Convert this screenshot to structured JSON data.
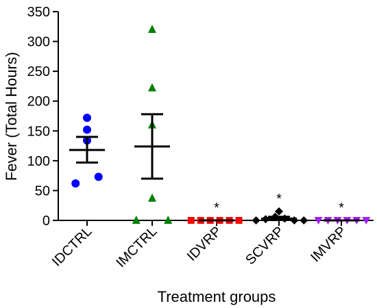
{
  "chart_data": {
    "type": "scatter",
    "title": "",
    "xlabel": "Treatment groups",
    "ylabel": "Fever (Total Hours)",
    "ylim": [
      0,
      350
    ],
    "yticks": [
      0,
      50,
      100,
      150,
      200,
      250,
      300,
      350
    ],
    "grid": false,
    "legend": "none",
    "categories": [
      "IDCTRL",
      "IMCTRL",
      "IDVRP",
      "SCVRP",
      "IMVRP"
    ],
    "series": [
      {
        "category": "IDCTRL",
        "marker": "circle",
        "color": "#0000ff",
        "points": [
          {
            "offset": -0.18,
            "y": 62
          },
          {
            "offset": 0.0,
            "y": 134
          },
          {
            "offset": 0.0,
            "y": 152
          },
          {
            "offset": 0.0,
            "y": 172
          },
          {
            "offset": 0.18,
            "y": 73
          }
        ],
        "mean": 118,
        "sem_low": 97,
        "sem_high": 140,
        "annotation": ""
      },
      {
        "category": "IMCTRL",
        "marker": "triangle-up",
        "color": "#008000",
        "points": [
          {
            "offset": -0.25,
            "y": 0
          },
          {
            "offset": 0.0,
            "y": 37
          },
          {
            "offset": 0.0,
            "y": 160
          },
          {
            "offset": 0.0,
            "y": 222
          },
          {
            "offset": 0.0,
            "y": 320
          },
          {
            "offset": 0.25,
            "y": 0
          }
        ],
        "mean": 124,
        "sem_low": 70,
        "sem_high": 178,
        "annotation": ""
      },
      {
        "category": "IDVRP",
        "marker": "square",
        "color": "#ff0000",
        "points": [
          {
            "offset": -0.4,
            "y": 0
          },
          {
            "offset": -0.25,
            "y": 0
          },
          {
            "offset": -0.1,
            "y": 0
          },
          {
            "offset": 0.05,
            "y": 0
          },
          {
            "offset": 0.2,
            "y": 0
          },
          {
            "offset": 0.35,
            "y": 0
          }
        ],
        "mean": 0,
        "sem_low": 0,
        "sem_high": 0,
        "annotation": "*"
      },
      {
        "category": "SCVRP",
        "marker": "diamond",
        "color": "#000000",
        "points": [
          {
            "offset": -0.36,
            "y": 0
          },
          {
            "offset": -0.21,
            "y": 2
          },
          {
            "offset": -0.06,
            "y": 6
          },
          {
            "offset": 0.0,
            "y": 15
          },
          {
            "offset": 0.09,
            "y": 3
          },
          {
            "offset": 0.24,
            "y": 0
          },
          {
            "offset": 0.39,
            "y": 0
          }
        ],
        "mean": 3,
        "sem_low": 1,
        "sem_high": 6,
        "annotation": "*"
      },
      {
        "category": "IMVRP",
        "marker": "triangle-down",
        "color": "#a020f0",
        "points": [
          {
            "offset": -0.36,
            "y": 0
          },
          {
            "offset": -0.21,
            "y": 0
          },
          {
            "offset": -0.06,
            "y": 0
          },
          {
            "offset": 0.09,
            "y": 0
          },
          {
            "offset": 0.24,
            "y": 0
          },
          {
            "offset": 0.39,
            "y": 0
          }
        ],
        "mean": 0,
        "sem_low": 0,
        "sem_high": 0,
        "annotation": "*"
      }
    ]
  }
}
